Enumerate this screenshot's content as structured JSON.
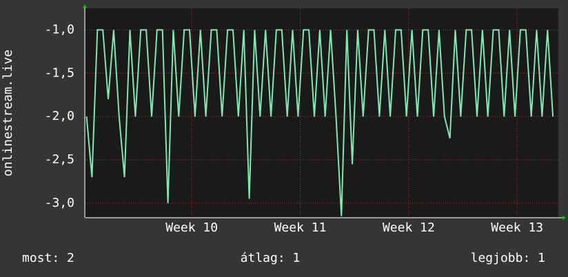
{
  "chart_data": {
    "type": "line",
    "ylabel": "onlinestream.live",
    "x": [
      9.03,
      9.08,
      9.13,
      9.18,
      9.23,
      9.28,
      9.33,
      9.38,
      9.43,
      9.48,
      9.53,
      9.58,
      9.63,
      9.68,
      9.73,
      9.78,
      9.83,
      9.88,
      9.93,
      9.98,
      10.03,
      10.08,
      10.13,
      10.18,
      10.23,
      10.28,
      10.33,
      10.38,
      10.43,
      10.48,
      10.53,
      10.58,
      10.63,
      10.68,
      10.73,
      10.78,
      10.83,
      10.88,
      10.93,
      10.98,
      11.03,
      11.08,
      11.13,
      11.18,
      11.23,
      11.28,
      11.33,
      11.38,
      11.43,
      11.48,
      11.53,
      11.58,
      11.63,
      11.68,
      11.73,
      11.78,
      11.83,
      11.88,
      11.93,
      11.98,
      12.03,
      12.08,
      12.13,
      12.18,
      12.23,
      12.28,
      12.33,
      12.38,
      12.43,
      12.48,
      12.53,
      12.58,
      12.63,
      12.68,
      12.73,
      12.78,
      12.83,
      12.88,
      12.93,
      12.98,
      13.03,
      13.08,
      13.13,
      13.18,
      13.23,
      13.28,
      13.33
    ],
    "series": [
      {
        "color": "#80e8b0",
        "values": [
          -2,
          -2.7,
          -1,
          -1,
          -1.8,
          -1,
          -2,
          -2.7,
          -1,
          -2,
          -1,
          -1,
          -2,
          -1,
          -1,
          -3,
          -1,
          -2,
          -1,
          -1,
          -2,
          -1,
          -2,
          -1,
          -1,
          -2,
          -1,
          -1,
          -2,
          -1,
          -2.95,
          -1,
          -2,
          -1,
          -2,
          -1,
          -1,
          -2,
          -1,
          -2,
          -1,
          -1,
          -2,
          -1,
          -2,
          -1,
          -2,
          -3.15,
          -1,
          -2.55,
          -1,
          -2,
          -1,
          -1,
          -2,
          -1,
          -2,
          -1,
          -1,
          -2,
          -1,
          -2,
          -1,
          -1,
          -2,
          -1,
          -2,
          -2.25,
          -1,
          -2,
          -1,
          -1,
          -2,
          -1,
          -2,
          -1,
          -1,
          -2,
          -1,
          -2,
          -1,
          -1,
          -2,
          -1,
          -2,
          -1,
          -2
        ]
      }
    ],
    "xlim": [
      9.02,
      13.38
    ],
    "xticks": [
      {
        "value": 10,
        "label": "Week 10"
      },
      {
        "value": 11,
        "label": "Week 11"
      },
      {
        "value": 12,
        "label": "Week 12"
      },
      {
        "value": 13,
        "label": "Week 13"
      }
    ],
    "ylim": [
      -3.16,
      -0.75
    ],
    "yticks": [
      {
        "value": -1,
        "label": "-1,0"
      },
      {
        "value": -1.5,
        "label": "-1,5"
      },
      {
        "value": -2,
        "label": "-2,0"
      },
      {
        "value": -2.5,
        "label": "-2,5"
      },
      {
        "value": -3,
        "label": "-3,0"
      }
    ],
    "grid": true,
    "footer": [
      "most: 2",
      "átlag: 1",
      "legjobb: 1"
    ]
  }
}
